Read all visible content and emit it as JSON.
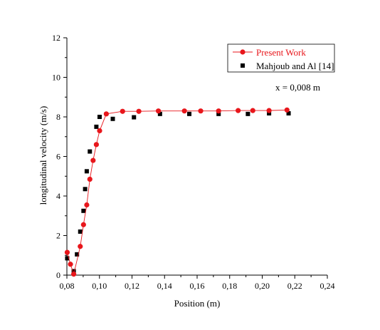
{
  "chart_data": {
    "type": "scatter",
    "xlabel": "Position (m)",
    "ylabel": "longitudinal velocity (m/s)",
    "xlim": [
      0.08,
      0.24
    ],
    "ylim": [
      0,
      12
    ],
    "x_ticks": [
      0.08,
      0.1,
      0.12,
      0.14,
      0.16,
      0.18,
      0.2,
      0.22,
      0.24
    ],
    "x_tick_labels": [
      "0,08",
      "0,10",
      "0,12",
      "0,14",
      "0,16",
      "0,18",
      "0,20",
      "0,22",
      "0,24"
    ],
    "y_ticks": [
      0,
      2,
      4,
      6,
      8,
      10,
      12
    ],
    "y_tick_labels": [
      "0",
      "2",
      "4",
      "6",
      "8",
      "10",
      "12"
    ],
    "grid": false,
    "legend_position": "top-right",
    "annotation": "x = 0,008 m",
    "series": [
      {
        "name": "Present Work",
        "marker": "circle",
        "line": true,
        "color": "#e8161b",
        "points": [
          [
            0.0802,
            1.15
          ],
          [
            0.0822,
            0.55
          ],
          [
            0.0842,
            0.05
          ],
          [
            0.0882,
            1.45
          ],
          [
            0.0902,
            2.55
          ],
          [
            0.0922,
            3.55
          ],
          [
            0.0941,
            4.85
          ],
          [
            0.0961,
            5.8
          ],
          [
            0.0981,
            6.6
          ],
          [
            0.1001,
            7.3
          ],
          [
            0.1042,
            8.15
          ],
          [
            0.1142,
            8.28
          ],
          [
            0.1242,
            8.28
          ],
          [
            0.1362,
            8.3
          ],
          [
            0.1522,
            8.3
          ],
          [
            0.1622,
            8.3
          ],
          [
            0.1732,
            8.3
          ],
          [
            0.1852,
            8.32
          ],
          [
            0.1942,
            8.32
          ],
          [
            0.2042,
            8.32
          ],
          [
            0.2152,
            8.35
          ]
        ]
      },
      {
        "name": "Mahjoub and Al [14]",
        "marker": "square",
        "line": false,
        "color": "#000000",
        "points": [
          [
            0.0802,
            0.85
          ],
          [
            0.0842,
            0.2
          ],
          [
            0.0862,
            1.05
          ],
          [
            0.0882,
            2.2
          ],
          [
            0.0902,
            3.25
          ],
          [
            0.0912,
            4.35
          ],
          [
            0.0922,
            5.25
          ],
          [
            0.0941,
            6.25
          ],
          [
            0.0981,
            7.5
          ],
          [
            0.1001,
            8.0
          ],
          [
            0.1082,
            7.9
          ],
          [
            0.1212,
            7.98
          ],
          [
            0.1372,
            8.15
          ],
          [
            0.1552,
            8.15
          ],
          [
            0.1732,
            8.15
          ],
          [
            0.1912,
            8.15
          ],
          [
            0.2042,
            8.18
          ],
          [
            0.2162,
            8.18
          ]
        ]
      }
    ]
  }
}
